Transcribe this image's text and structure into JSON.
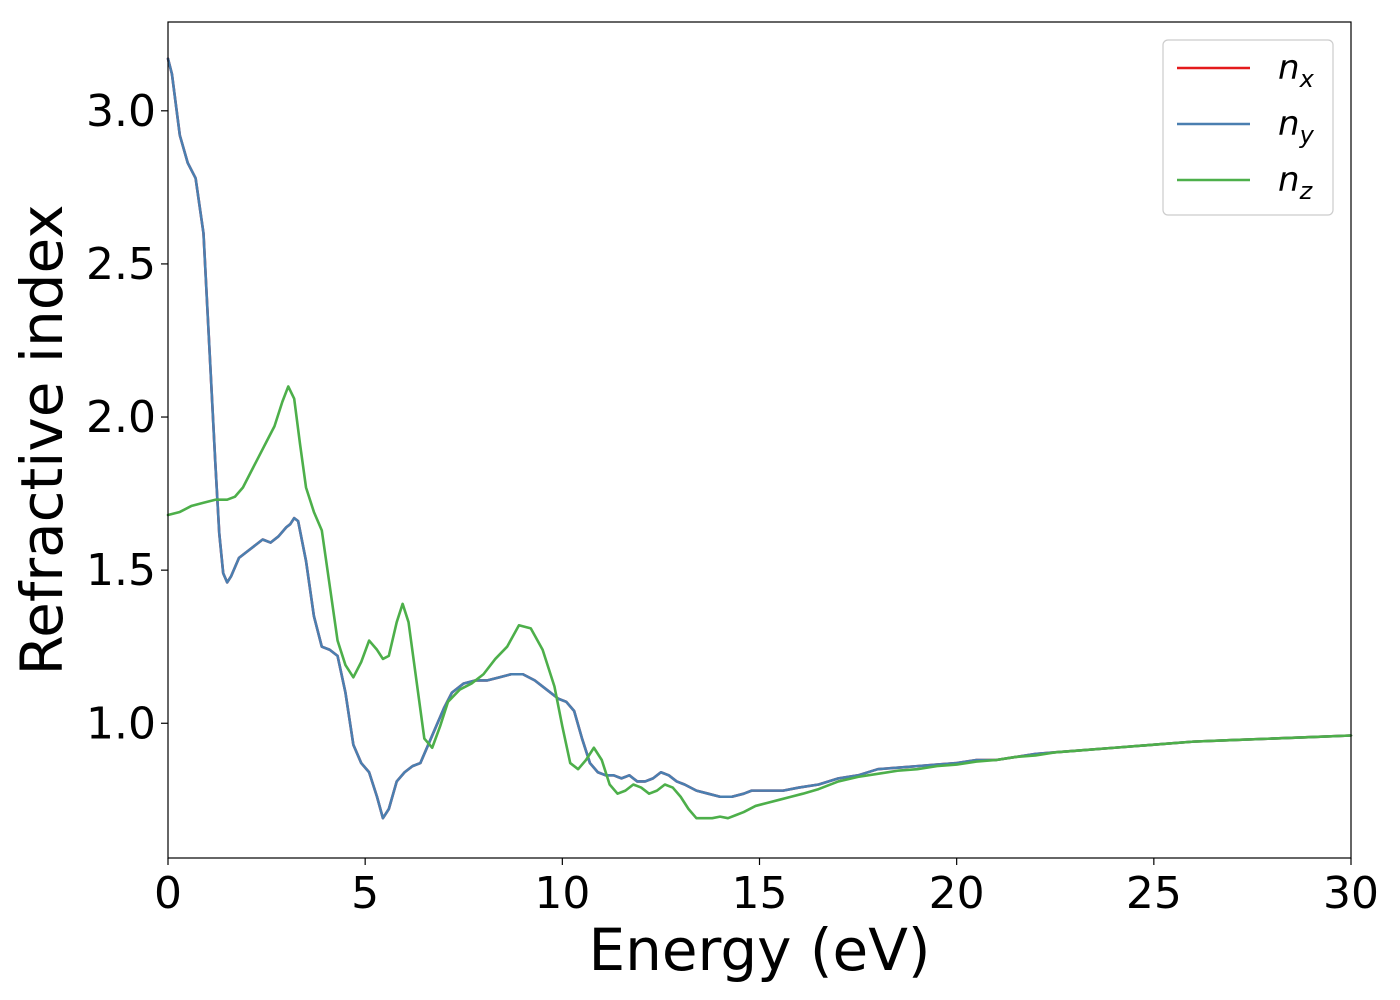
{
  "chart_data": {
    "type": "line",
    "xlabel": "Energy (eV)",
    "ylabel": "Refractive index",
    "xlim": [
      0,
      30
    ],
    "ylim": [
      0.56,
      3.29
    ],
    "xticks": [
      0,
      5,
      10,
      15,
      20,
      25,
      30
    ],
    "xtick_labels": [
      "0",
      "5",
      "10",
      "15",
      "20",
      "25",
      "30"
    ],
    "yticks": [
      1.0,
      1.5,
      2.0,
      2.5,
      3.0
    ],
    "ytick_labels": [
      "1.0",
      "1.5",
      "2.0",
      "2.5",
      "3.0"
    ],
    "grid": false,
    "legend_position": "top-right",
    "series": [
      {
        "name": "n",
        "subscript": "x",
        "color": "#e41a1c",
        "x": [
          0,
          0.1,
          0.3,
          0.5,
          0.7,
          0.9,
          1.0,
          1.1,
          1.2,
          1.3,
          1.4,
          1.5,
          1.6,
          1.8,
          2.0,
          2.2,
          2.4,
          2.6,
          2.8,
          3.0,
          3.1,
          3.2,
          3.3,
          3.5,
          3.7,
          3.9,
          4.1,
          4.3,
          4.5,
          4.7,
          4.9,
          5.1,
          5.3,
          5.45,
          5.6,
          5.8,
          6.0,
          6.2,
          6.4,
          6.6,
          6.8,
          7.0,
          7.2,
          7.5,
          7.8,
          8.1,
          8.4,
          8.7,
          9.0,
          9.3,
          9.6,
          9.9,
          10.1,
          10.3,
          10.5,
          10.7,
          10.9,
          11.1,
          11.3,
          11.5,
          11.7,
          11.9,
          12.1,
          12.3,
          12.5,
          12.7,
          12.9,
          13.1,
          13.4,
          13.7,
          14.0,
          14.3,
          14.6,
          14.8,
          15.0,
          15.3,
          15.6,
          16.0,
          16.5,
          17.0,
          17.5,
          18.0,
          18.5,
          19.0,
          19.5,
          20.0,
          20.5,
          21.0,
          21.5,
          22.0,
          22.5,
          23.0,
          24.0,
          25.0,
          26.0,
          27.0,
          28.0,
          29.0,
          30.0
        ],
        "y": [
          3.17,
          3.12,
          2.92,
          2.83,
          2.78,
          2.6,
          2.35,
          2.1,
          1.85,
          1.62,
          1.49,
          1.46,
          1.48,
          1.54,
          1.56,
          1.58,
          1.6,
          1.59,
          1.61,
          1.64,
          1.65,
          1.67,
          1.66,
          1.53,
          1.35,
          1.25,
          1.24,
          1.22,
          1.1,
          0.93,
          0.87,
          0.84,
          0.76,
          0.69,
          0.72,
          0.81,
          0.84,
          0.86,
          0.87,
          0.93,
          0.99,
          1.05,
          1.1,
          1.13,
          1.14,
          1.14,
          1.15,
          1.16,
          1.16,
          1.14,
          1.11,
          1.08,
          1.07,
          1.04,
          0.95,
          0.87,
          0.84,
          0.83,
          0.83,
          0.82,
          0.83,
          0.81,
          0.81,
          0.82,
          0.84,
          0.83,
          0.81,
          0.8,
          0.78,
          0.77,
          0.76,
          0.76,
          0.77,
          0.78,
          0.78,
          0.78,
          0.78,
          0.79,
          0.8,
          0.82,
          0.83,
          0.85,
          0.855,
          0.86,
          0.865,
          0.87,
          0.88,
          0.88,
          0.89,
          0.9,
          0.905,
          0.91,
          0.92,
          0.93,
          0.94,
          0.945,
          0.95,
          0.955,
          0.96
        ]
      },
      {
        "name": "n",
        "subscript": "y",
        "color": "#4a7fb0",
        "x": [
          0,
          0.1,
          0.3,
          0.5,
          0.7,
          0.9,
          1.0,
          1.1,
          1.2,
          1.3,
          1.4,
          1.5,
          1.6,
          1.8,
          2.0,
          2.2,
          2.4,
          2.6,
          2.8,
          3.0,
          3.1,
          3.2,
          3.3,
          3.5,
          3.7,
          3.9,
          4.1,
          4.3,
          4.5,
          4.7,
          4.9,
          5.1,
          5.3,
          5.45,
          5.6,
          5.8,
          6.0,
          6.2,
          6.4,
          6.6,
          6.8,
          7.0,
          7.2,
          7.5,
          7.8,
          8.1,
          8.4,
          8.7,
          9.0,
          9.3,
          9.6,
          9.9,
          10.1,
          10.3,
          10.5,
          10.7,
          10.9,
          11.1,
          11.3,
          11.5,
          11.7,
          11.9,
          12.1,
          12.3,
          12.5,
          12.7,
          12.9,
          13.1,
          13.4,
          13.7,
          14.0,
          14.3,
          14.6,
          14.8,
          15.0,
          15.3,
          15.6,
          16.0,
          16.5,
          17.0,
          17.5,
          18.0,
          18.5,
          19.0,
          19.5,
          20.0,
          20.5,
          21.0,
          21.5,
          22.0,
          22.5,
          23.0,
          24.0,
          25.0,
          26.0,
          27.0,
          28.0,
          29.0,
          30.0
        ],
        "y": [
          3.17,
          3.12,
          2.92,
          2.83,
          2.78,
          2.6,
          2.35,
          2.1,
          1.85,
          1.62,
          1.49,
          1.46,
          1.48,
          1.54,
          1.56,
          1.58,
          1.6,
          1.59,
          1.61,
          1.64,
          1.65,
          1.67,
          1.66,
          1.53,
          1.35,
          1.25,
          1.24,
          1.22,
          1.1,
          0.93,
          0.87,
          0.84,
          0.76,
          0.69,
          0.72,
          0.81,
          0.84,
          0.86,
          0.87,
          0.93,
          0.99,
          1.05,
          1.1,
          1.13,
          1.14,
          1.14,
          1.15,
          1.16,
          1.16,
          1.14,
          1.11,
          1.08,
          1.07,
          1.04,
          0.95,
          0.87,
          0.84,
          0.83,
          0.83,
          0.82,
          0.83,
          0.81,
          0.81,
          0.82,
          0.84,
          0.83,
          0.81,
          0.8,
          0.78,
          0.77,
          0.76,
          0.76,
          0.77,
          0.78,
          0.78,
          0.78,
          0.78,
          0.79,
          0.8,
          0.82,
          0.83,
          0.85,
          0.855,
          0.86,
          0.865,
          0.87,
          0.88,
          0.88,
          0.89,
          0.9,
          0.905,
          0.91,
          0.92,
          0.93,
          0.94,
          0.945,
          0.95,
          0.955,
          0.96
        ]
      },
      {
        "name": "n",
        "subscript": "z",
        "color": "#4daf4a",
        "x": [
          0,
          0.3,
          0.6,
          0.9,
          1.2,
          1.5,
          1.7,
          1.9,
          2.1,
          2.3,
          2.5,
          2.7,
          2.9,
          3.05,
          3.2,
          3.35,
          3.5,
          3.7,
          3.9,
          4.1,
          4.3,
          4.5,
          4.7,
          4.9,
          5.1,
          5.3,
          5.45,
          5.6,
          5.8,
          5.95,
          6.1,
          6.3,
          6.5,
          6.7,
          6.9,
          7.1,
          7.4,
          7.7,
          8.0,
          8.3,
          8.6,
          8.9,
          9.2,
          9.5,
          9.8,
          10.0,
          10.2,
          10.4,
          10.6,
          10.8,
          11.0,
          11.2,
          11.4,
          11.6,
          11.8,
          12.0,
          12.2,
          12.4,
          12.6,
          12.8,
          13.0,
          13.2,
          13.4,
          13.6,
          13.8,
          14.0,
          14.2,
          14.4,
          14.6,
          14.9,
          15.2,
          15.5,
          15.8,
          16.1,
          16.5,
          17.0,
          17.5,
          18.0,
          18.5,
          19.0,
          19.5,
          20.0,
          20.5,
          21.0,
          21.5,
          22.0,
          22.5,
          23.0,
          24.0,
          25.0,
          26.0,
          27.0,
          28.0,
          29.0,
          30.0
        ],
        "y": [
          1.68,
          1.69,
          1.71,
          1.72,
          1.73,
          1.73,
          1.74,
          1.77,
          1.82,
          1.87,
          1.92,
          1.97,
          2.05,
          2.1,
          2.06,
          1.91,
          1.77,
          1.69,
          1.63,
          1.45,
          1.27,
          1.19,
          1.15,
          1.2,
          1.27,
          1.24,
          1.21,
          1.22,
          1.33,
          1.39,
          1.33,
          1.14,
          0.95,
          0.92,
          0.99,
          1.07,
          1.11,
          1.13,
          1.16,
          1.21,
          1.25,
          1.32,
          1.31,
          1.24,
          1.12,
          0.99,
          0.87,
          0.85,
          0.88,
          0.92,
          0.88,
          0.8,
          0.77,
          0.78,
          0.8,
          0.79,
          0.77,
          0.78,
          0.8,
          0.79,
          0.76,
          0.72,
          0.69,
          0.69,
          0.69,
          0.695,
          0.69,
          0.7,
          0.71,
          0.73,
          0.74,
          0.75,
          0.76,
          0.77,
          0.785,
          0.81,
          0.825,
          0.835,
          0.845,
          0.85,
          0.86,
          0.865,
          0.875,
          0.88,
          0.89,
          0.895,
          0.905,
          0.91,
          0.92,
          0.93,
          0.94,
          0.945,
          0.95,
          0.955,
          0.96
        ]
      }
    ]
  }
}
